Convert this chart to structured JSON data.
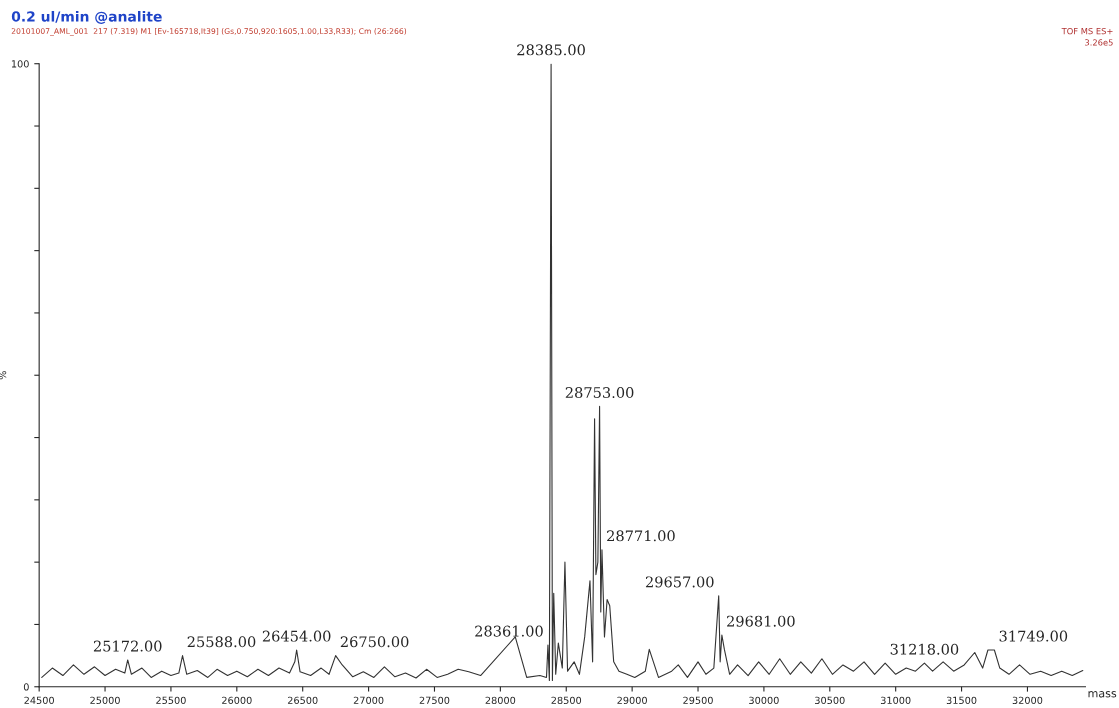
{
  "chart_data": {
    "type": "line",
    "title": "0.2 ul/min @analite",
    "subtitle": "20101007_AML_001  217 (7.319) M1 [Ev-165718,It39] (Gs,0.750,920:1605,1.00,L33,R33); Cm (26:266)",
    "xlabel": "mass",
    "ylabel": "%",
    "xlim": [
      24500,
      32440
    ],
    "ylim": [
      0,
      100
    ],
    "xticks": [
      24500,
      25000,
      25500,
      26000,
      26500,
      27000,
      27500,
      28000,
      28500,
      29000,
      29500,
      30000,
      30500,
      31000,
      31500,
      32000
    ],
    "yticks": [
      0,
      {
        "value": 10,
        "label": null
      },
      {
        "value": 20,
        "label": null
      },
      {
        "value": 30,
        "label": null
      },
      {
        "value": 40,
        "label": null
      },
      {
        "value": 50,
        "label": null
      },
      {
        "value": 60,
        "label": null
      },
      {
        "value": 70,
        "label": null
      },
      {
        "value": 80,
        "label": null
      },
      {
        "value": 90,
        "label": null
      },
      100
    ],
    "grid": false,
    "series": [
      {
        "color": "#333333",
        "x": [
          24520,
          24600,
          24680,
          24760,
          24840,
          24920,
          25000,
          25080,
          25150,
          25172,
          25200,
          25280,
          25350,
          25430,
          25500,
          25560,
          25588,
          25620,
          25700,
          25780,
          25850,
          25930,
          26000,
          26080,
          26160,
          26240,
          26320,
          26400,
          26440,
          26454,
          26480,
          26560,
          26640,
          26700,
          26750,
          26800,
          26880,
          26960,
          27040,
          27120,
          27200,
          27280,
          27360,
          27440,
          27520,
          27600,
          27680,
          27760,
          27850,
          28113,
          28200,
          28300,
          28350,
          28361,
          28372,
          28385,
          28395,
          28405,
          28420,
          28440,
          28470,
          28490,
          28510,
          28560,
          28600,
          28640,
          28680,
          28700,
          28715,
          28725,
          28740,
          28753,
          28762,
          28771,
          28790,
          28810,
          28830,
          28860,
          28900,
          28960,
          29020,
          29100,
          29130,
          29200,
          29300,
          29350,
          29420,
          29500,
          29560,
          29620,
          29657,
          29668,
          29681,
          29700,
          29740,
          29800,
          29880,
          29960,
          30040,
          30120,
          30200,
          30280,
          30360,
          30440,
          30520,
          30600,
          30680,
          30760,
          30840,
          30920,
          31000,
          31080,
          31150,
          31218,
          31280,
          31360,
          31440,
          31520,
          31600,
          31660,
          31700,
          31749,
          31790,
          31860,
          31940,
          32020,
          32100,
          32180,
          32260,
          32340,
          32420
        ],
        "values": [
          1.5,
          3,
          1.8,
          3.5,
          2,
          3.2,
          1.8,
          2.8,
          2.2,
          4.3,
          2,
          3,
          1.5,
          2.5,
          1.8,
          2.2,
          5,
          2,
          2.6,
          1.5,
          2.8,
          1.8,
          2.5,
          1.6,
          2.8,
          1.8,
          3,
          2.2,
          4,
          5.9,
          2.4,
          1.8,
          3,
          2,
          5,
          3.5,
          1.6,
          2.4,
          1.5,
          3.2,
          1.6,
          2.2,
          1.4,
          2.8,
          1.5,
          2,
          2.8,
          2.4,
          1.8,
          8,
          1.5,
          1.8,
          1.5,
          6.7,
          1,
          100,
          1,
          15,
          2,
          7,
          3,
          20,
          2.5,
          4,
          2,
          8,
          17,
          4,
          43,
          18,
          20,
          45,
          12,
          22,
          8,
          14,
          13,
          4,
          2.5,
          2,
          1.5,
          2.5,
          6,
          1.5,
          2.5,
          3.5,
          1.5,
          4,
          2,
          3,
          14.6,
          4,
          8.3,
          6,
          2,
          3.5,
          1.8,
          4,
          2,
          4.5,
          2,
          4,
          2.2,
          4.5,
          2,
          3.5,
          2.5,
          4,
          2,
          3.8,
          2,
          3,
          2.5,
          3.8,
          2.5,
          4,
          2.5,
          3.5,
          5.5,
          3,
          5.9,
          5.9,
          3,
          2,
          3.5,
          2,
          2.5,
          1.8,
          2.5,
          1.8,
          2.6
        ]
      }
    ],
    "annotations": [
      {
        "text": "25172.00",
        "x": 25172,
        "y": 4.3
      },
      {
        "text": "25588.00",
        "x": 25588,
        "y": 5
      },
      {
        "text": "26454.00",
        "x": 26454,
        "y": 5.9
      },
      {
        "text": "26750.00",
        "x": 26750,
        "y": 5
      },
      {
        "text": "28361.00",
        "x": 28361,
        "y": 6.7
      },
      {
        "text": "28385.00",
        "x": 28385,
        "y": 100
      },
      {
        "text": "28753.00",
        "x": 28753,
        "y": 45
      },
      {
        "text": "28771.00",
        "x": 28771,
        "y": 22
      },
      {
        "text": "29657.00",
        "x": 29657,
        "y": 14.6
      },
      {
        "text": "29681.00",
        "x": 29681,
        "y": 8.3
      },
      {
        "text": "31218.00",
        "x": 31218,
        "y": 3.8
      },
      {
        "text": "31749.00",
        "x": 31749,
        "y": 5.9
      },
      "TOF MS ES+",
      "3.26e5"
    ]
  }
}
